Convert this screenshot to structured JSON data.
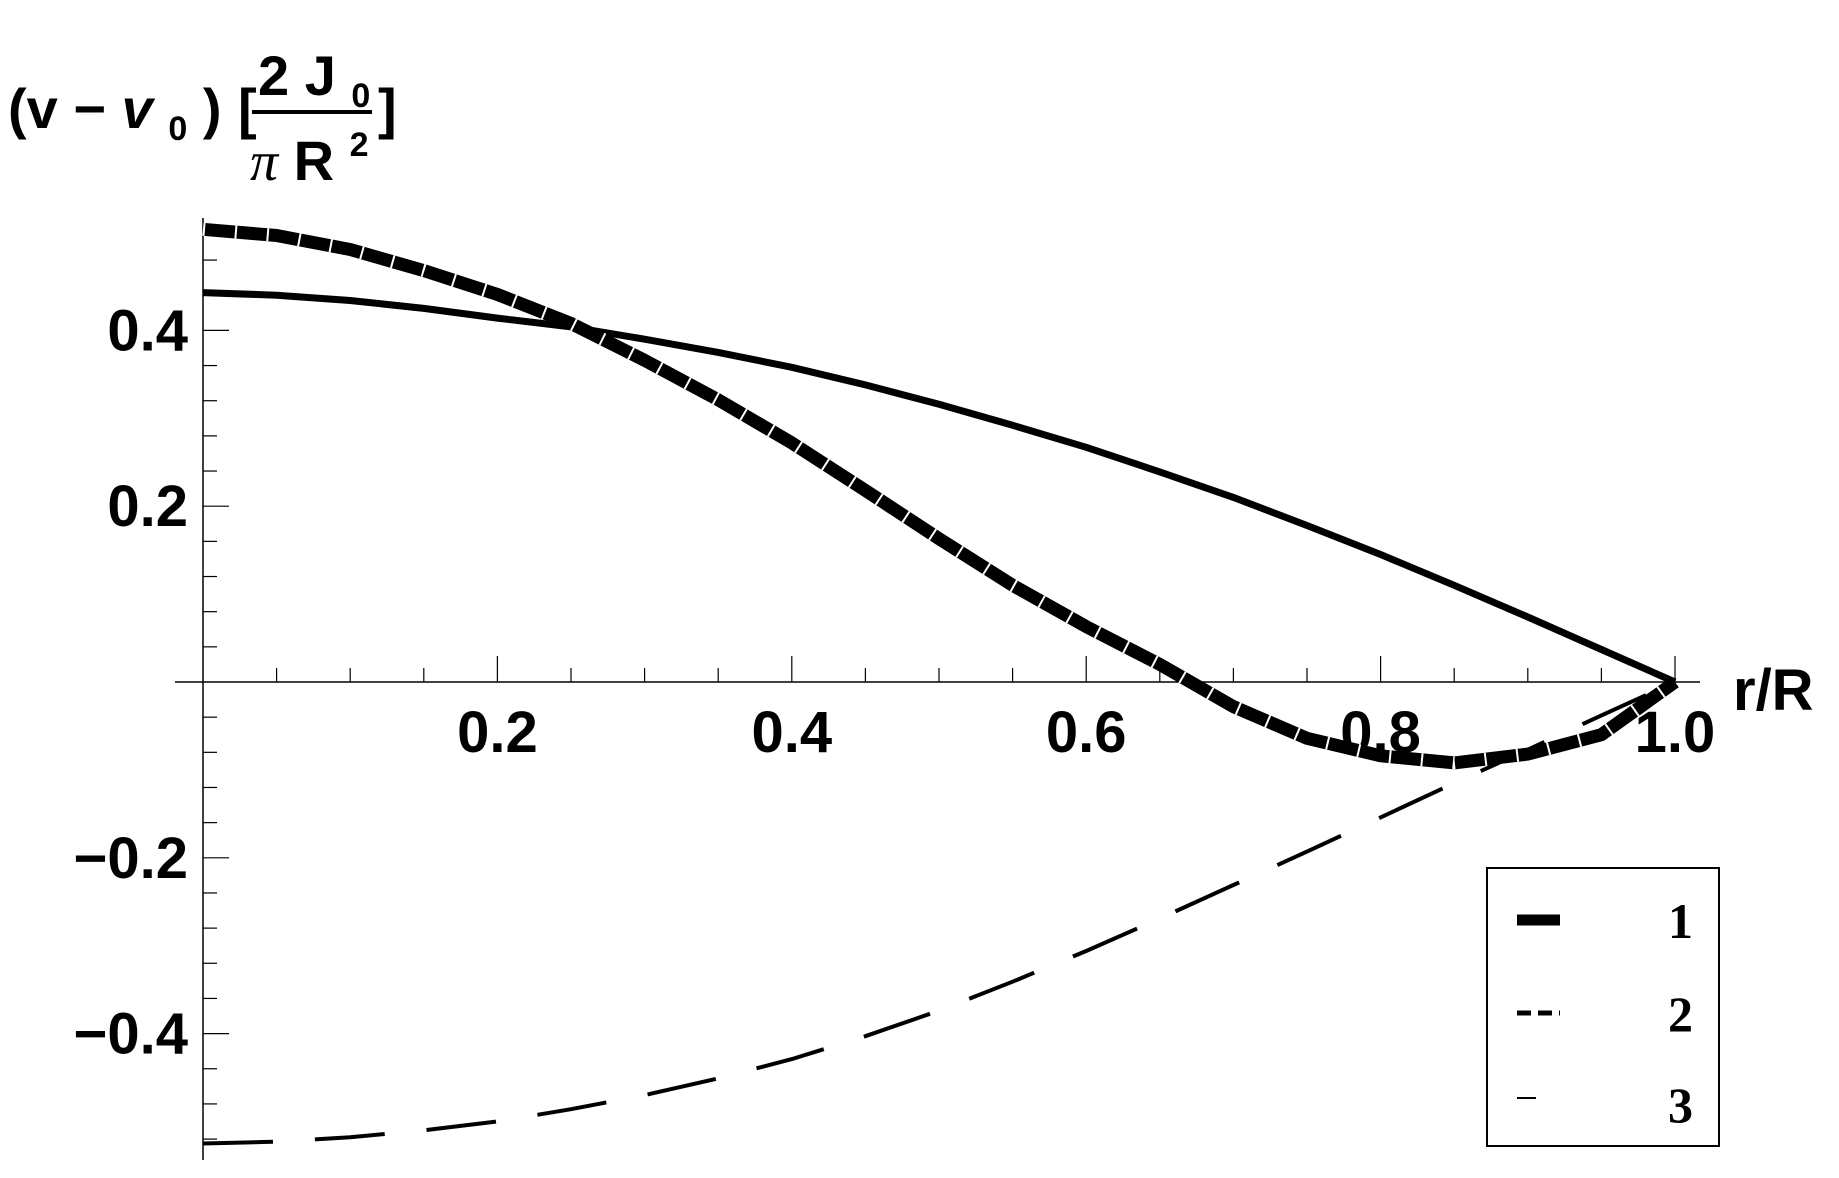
{
  "chart_data": {
    "type": "line",
    "ylabel": {
      "prefix": "(v",
      "minus": "−",
      "v0_symbol": "v",
      "v0_sub": "0",
      "close_paren": ")",
      "open_bracket": "[",
      "numerator": "2 J",
      "numerator_sub": "0",
      "denominator_pi": "π",
      "denominator_R": "R",
      "denominator_sup": "2",
      "close_bracket": "]"
    },
    "xlabel": "r/R",
    "xlim": [
      0,
      1.0
    ],
    "ylim": [
      -0.55,
      0.55
    ],
    "x_ticks": [
      0.2,
      0.4,
      0.6,
      0.8,
      1.0
    ],
    "x_tick_labels": [
      "0.2",
      "0.4",
      "0.6",
      "0.8",
      "1.0"
    ],
    "y_ticks": [
      0.4,
      0.2,
      -0.2,
      -0.4
    ],
    "y_tick_labels": [
      "0.4",
      "0.2",
      "−0.2",
      "−0.4"
    ],
    "x": [
      0,
      0.05,
      0.1,
      0.15,
      0.2,
      0.25,
      0.3,
      0.35,
      0.4,
      0.45,
      0.5,
      0.55,
      0.6,
      0.65,
      0.7,
      0.75,
      0.8,
      0.85,
      0.9,
      0.95,
      1.0
    ],
    "series": [
      {
        "name": "1",
        "style": "thick-solid",
        "color": "#000000",
        "values": [
          0.515,
          0.508,
          0.492,
          0.468,
          0.441,
          0.408,
          0.366,
          0.321,
          0.272,
          0.218,
          0.163,
          0.11,
          0.063,
          0.02,
          -0.028,
          -0.064,
          -0.084,
          -0.092,
          -0.082,
          -0.06,
          0.0
        ]
      },
      {
        "name": "2",
        "style": "dashed",
        "color": "#000000",
        "values": [
          -0.525,
          -0.523,
          -0.518,
          -0.51,
          -0.5,
          -0.486,
          -0.47,
          -0.451,
          -0.429,
          -0.403,
          -0.374,
          -0.341,
          -0.306,
          -0.269,
          -0.231,
          -0.193,
          -0.154,
          -0.115,
          -0.077,
          -0.038,
          0.0
        ]
      },
      {
        "name": "3",
        "style": "thin-solid",
        "color": "#000000",
        "values": [
          0.443,
          0.44,
          0.434,
          0.425,
          0.414,
          0.404,
          0.39,
          0.375,
          0.358,
          0.338,
          0.316,
          0.292,
          0.267,
          0.239,
          0.21,
          0.178,
          0.145,
          0.11,
          0.074,
          0.037,
          0.0
        ]
      }
    ],
    "legend": {
      "placement": "bottom-right",
      "entries": [
        "1",
        "2",
        "3"
      ]
    },
    "grid": false
  }
}
